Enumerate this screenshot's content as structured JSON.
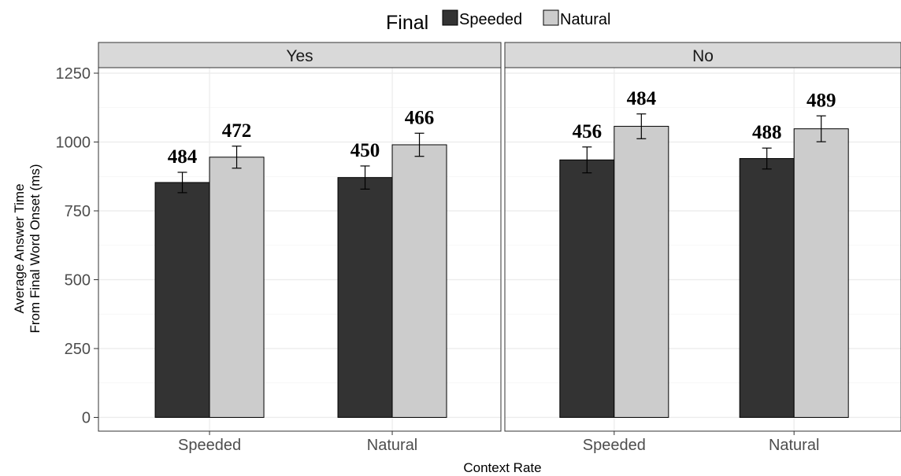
{
  "chart_data": {
    "type": "bar",
    "legend": {
      "title": "Final",
      "placement": "top",
      "entries": [
        {
          "name": "Speeded",
          "color": "#333333"
        },
        {
          "name": "Natural",
          "color": "#cccccc"
        }
      ]
    },
    "xlabel": "Context Rate",
    "ylabel_lines": [
      "Average Answer Time",
      "From Final Word Onset (ms)"
    ],
    "ylim": [
      -50,
      1270
    ],
    "yticks": [
      0,
      250,
      500,
      750,
      1000,
      1250
    ],
    "grid": true,
    "categories": [
      "Speeded",
      "Natural"
    ],
    "facets": [
      {
        "label": "Yes",
        "series": [
          {
            "name": "Speeded",
            "values": [
              853,
              871
            ],
            "errors": [
              37,
              42
            ],
            "labels": [
              "484",
              "450"
            ]
          },
          {
            "name": "Natural",
            "values": [
              945,
              990
            ],
            "errors": [
              40,
              42
            ],
            "labels": [
              "472",
              "466"
            ]
          }
        ]
      },
      {
        "label": "No",
        "series": [
          {
            "name": "Speeded",
            "values": [
              935,
              940
            ],
            "errors": [
              47,
              38
            ],
            "labels": [
              "456",
              "488"
            ]
          },
          {
            "name": "Natural",
            "values": [
              1057,
              1048
            ],
            "errors": [
              45,
              47
            ],
            "labels": [
              "484",
              "489"
            ]
          }
        ]
      }
    ]
  }
}
